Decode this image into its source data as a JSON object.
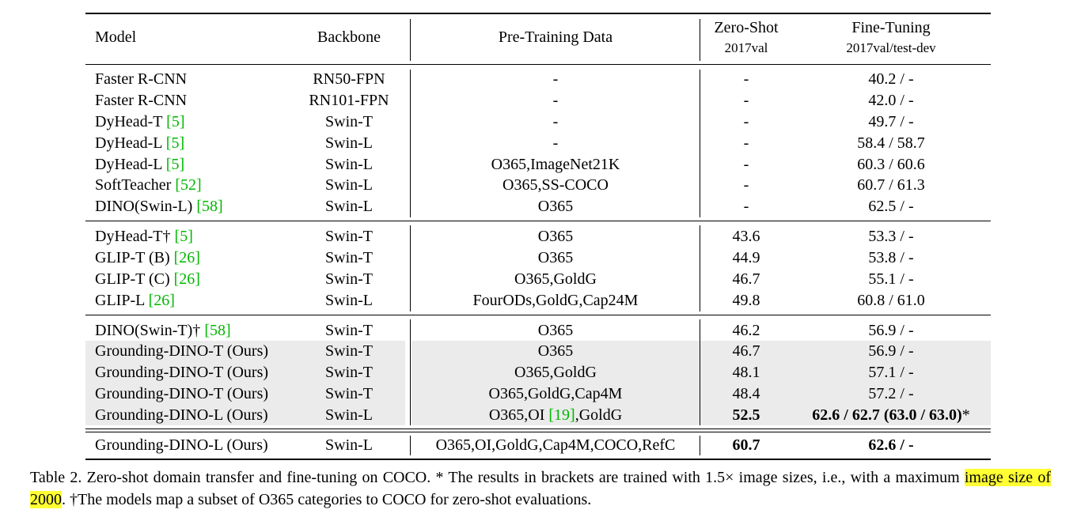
{
  "table": {
    "headers": {
      "model": "Model",
      "backbone": "Backbone",
      "pretraining": "Pre-Training Data",
      "zeroshot": "Zero-Shot",
      "zeroshot_sub": "2017val",
      "finetuning": "Fine-Tuning",
      "finetuning_sub": "2017val/test-dev"
    },
    "rows": [
      {
        "model": "Faster R-CNN",
        "ref": "",
        "suffix": "",
        "backbone": "RN50-FPN",
        "pre": "-",
        "pre_ref": "",
        "pre_suffix": "",
        "zs": "-",
        "ft": "40.2 / -",
        "bold": false,
        "shaded": false
      },
      {
        "model": "Faster R-CNN",
        "ref": "",
        "suffix": "",
        "backbone": "RN101-FPN",
        "pre": "-",
        "pre_ref": "",
        "pre_suffix": "",
        "zs": "-",
        "ft": "42.0 / -",
        "bold": false,
        "shaded": false
      },
      {
        "model": "DyHead-T ",
        "ref": "[5]",
        "suffix": "",
        "backbone": "Swin-T",
        "pre": "-",
        "pre_ref": "",
        "pre_suffix": "",
        "zs": "-",
        "ft": "49.7 / -",
        "bold": false,
        "shaded": false
      },
      {
        "model": "DyHead-L ",
        "ref": "[5]",
        "suffix": "",
        "backbone": "Swin-L",
        "pre": "-",
        "pre_ref": "",
        "pre_suffix": "",
        "zs": "-",
        "ft": "58.4 / 58.7",
        "bold": false,
        "shaded": false
      },
      {
        "model": "DyHead-L ",
        "ref": "[5]",
        "suffix": "",
        "backbone": "Swin-L",
        "pre": "O365,ImageNet21K",
        "pre_ref": "",
        "pre_suffix": "",
        "zs": "-",
        "ft": "60.3 / 60.6",
        "bold": false,
        "shaded": false
      },
      {
        "model": "SoftTeacher ",
        "ref": "[52]",
        "suffix": "",
        "backbone": "Swin-L",
        "pre": "O365,SS-COCO",
        "pre_ref": "",
        "pre_suffix": "",
        "zs": "-",
        "ft": "60.7 / 61.3",
        "bold": false,
        "shaded": false
      },
      {
        "model": "DINO(Swin-L) ",
        "ref": "[58]",
        "suffix": "",
        "backbone": "Swin-L",
        "pre": "O365",
        "pre_ref": "",
        "pre_suffix": "",
        "zs": "-",
        "ft": "62.5 / -",
        "bold": false,
        "shaded": false
      },
      {
        "model": "DyHead-T† ",
        "ref": "[5]",
        "suffix": "",
        "backbone": "Swin-T",
        "pre": "O365",
        "pre_ref": "",
        "pre_suffix": "",
        "zs": "43.6",
        "ft": "53.3 / -",
        "bold": false,
        "shaded": false
      },
      {
        "model": "GLIP-T (B) ",
        "ref": "[26]",
        "suffix": "",
        "backbone": "Swin-T",
        "pre": "O365",
        "pre_ref": "",
        "pre_suffix": "",
        "zs": "44.9",
        "ft": "53.8 / -",
        "bold": false,
        "shaded": false
      },
      {
        "model": "GLIP-T (C) ",
        "ref": "[26]",
        "suffix": "",
        "backbone": "Swin-T",
        "pre": "O365,GoldG",
        "pre_ref": "",
        "pre_suffix": "",
        "zs": "46.7",
        "ft": "55.1 / -",
        "bold": false,
        "shaded": false
      },
      {
        "model": "GLIP-L ",
        "ref": "[26]",
        "suffix": "",
        "backbone": "Swin-L",
        "pre": "FourODs,GoldG,Cap24M",
        "pre_ref": "",
        "pre_suffix": "",
        "zs": "49.8",
        "ft": "60.8 / 61.0",
        "bold": false,
        "shaded": false
      },
      {
        "model": "DINO(Swin-T)† ",
        "ref": "[58]",
        "suffix": "",
        "backbone": "Swin-T",
        "pre": "O365",
        "pre_ref": "",
        "pre_suffix": "",
        "zs": "46.2",
        "ft": "56.9 / -",
        "bold": false,
        "shaded": false
      },
      {
        "model": "Grounding-DINO-T (Ours)",
        "ref": "",
        "suffix": "",
        "backbone": "Swin-T",
        "pre": "O365",
        "pre_ref": "",
        "pre_suffix": "",
        "zs": "46.7",
        "ft": "56.9 / -",
        "bold": false,
        "shaded": true
      },
      {
        "model": "Grounding-DINO-T (Ours)",
        "ref": "",
        "suffix": "",
        "backbone": "Swin-T",
        "pre": "O365,GoldG",
        "pre_ref": "",
        "pre_suffix": "",
        "zs": "48.1",
        "ft": "57.1 / -",
        "bold": false,
        "shaded": true
      },
      {
        "model": "Grounding-DINO-T (Ours)",
        "ref": "",
        "suffix": "",
        "backbone": "Swin-T",
        "pre": "O365,GoldG,Cap4M",
        "pre_ref": "",
        "pre_suffix": "",
        "zs": "48.4",
        "ft": "57.2 / -",
        "bold": false,
        "shaded": true
      },
      {
        "model": "Grounding-DINO-L (Ours)",
        "ref": "",
        "suffix": "",
        "backbone": "Swin-L",
        "pre": "O365,OI ",
        "pre_ref": "[19]",
        "pre_suffix": ",GoldG",
        "zs": "52.5",
        "ft": "62.6 / 62.7 (63.0 / 63.0)",
        "ft_suffix": "*",
        "bold": true,
        "shaded": true
      },
      {
        "model": "Grounding-DINO-L (Ours)",
        "ref": "",
        "suffix": "",
        "backbone": "Swin-L",
        "pre": "O365,OI,GoldG,Cap4M,COCO,RefC",
        "pre_ref": "",
        "pre_suffix": "",
        "zs": "60.7",
        "ft": "62.6 / -",
        "bold": true,
        "shaded": false
      }
    ]
  },
  "caption": {
    "part1": "Table 2. Zero-shot domain transfer and fine-tuning on COCO. * The results in brackets are trained with 1.5× image sizes, i.e., with a maximum ",
    "highlight": "image size of 2000",
    "part2": ". †The models map a subset of O365 categories to COCO for zero-shot evaluations."
  },
  "colors": {
    "shade": "#ebebeb",
    "ref": "#00b800",
    "highlight": "#ffff33"
  }
}
